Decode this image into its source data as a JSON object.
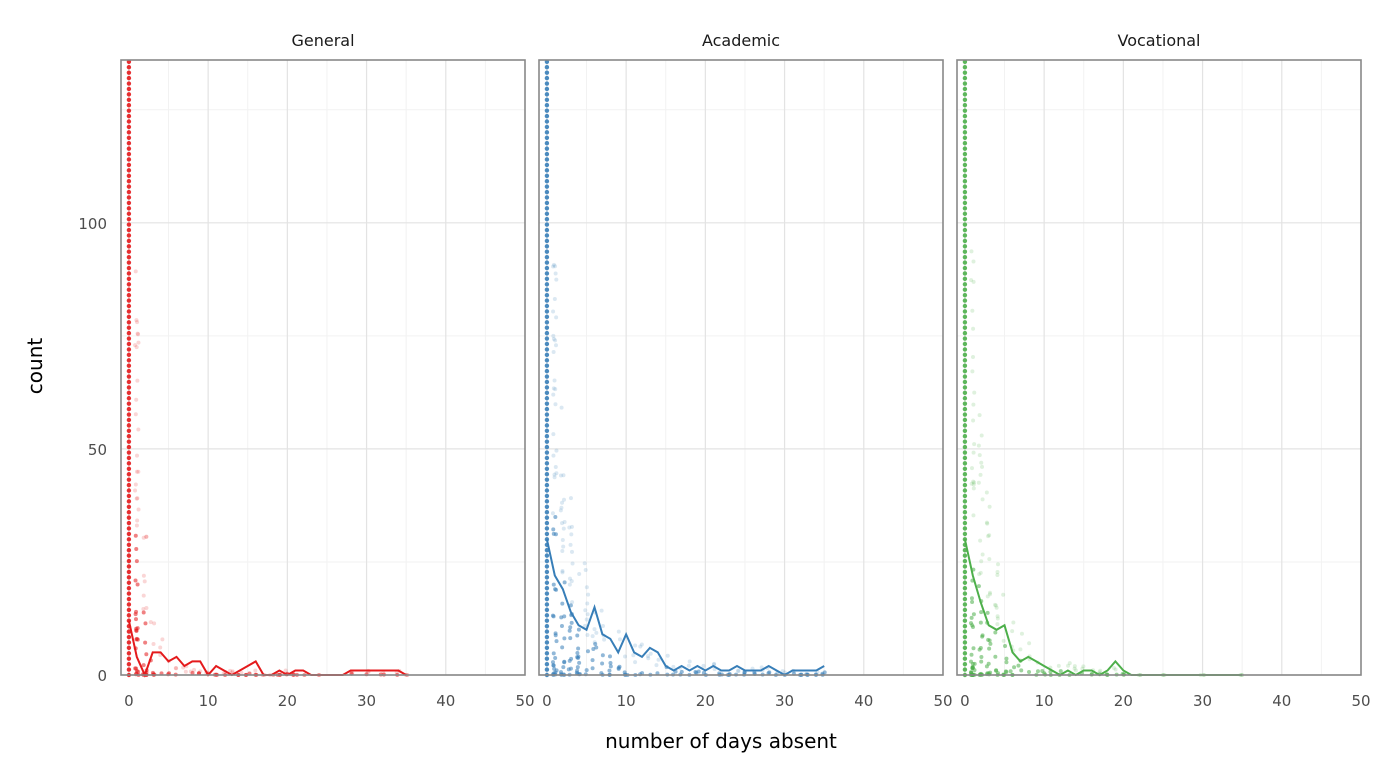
{
  "chart_data": {
    "type": "scatter",
    "xlabel": "number of days absent",
    "ylabel": "count",
    "xlim": [
      -1,
      50
    ],
    "ylim": [
      0,
      136
    ],
    "x_ticks": [
      0,
      10,
      20,
      30,
      40,
      50
    ],
    "x_tick_labels": [
      "0",
      "10",
      "20",
      "30",
      "40",
      "50"
    ],
    "y_ticks": [
      0,
      50,
      100
    ],
    "y_tick_labels": [
      "0",
      "50",
      "100"
    ],
    "grid": true,
    "legend": "none",
    "panels": [
      {
        "name": "General",
        "color": "#e41a1c",
        "line": {
          "x": [
            0,
            1,
            2,
            3,
            4,
            5,
            6,
            7,
            8,
            9,
            10,
            11,
            12,
            13,
            14,
            15,
            16,
            17,
            18,
            19,
            20,
            21,
            22,
            23,
            24,
            25,
            26,
            27,
            28,
            29,
            30,
            31,
            32,
            33,
            34,
            35
          ],
          "y": [
            12,
            4,
            0,
            5,
            5,
            3,
            4,
            2,
            3,
            3,
            0,
            2,
            1,
            0,
            1,
            2,
            3,
            0,
            0,
            1,
            0,
            1,
            1,
            0,
            0,
            0,
            0,
            0,
            1,
            1,
            1,
            1,
            1,
            1,
            1,
            0
          ]
        },
        "point_spread": [
          [
            0,
            136
          ],
          [
            1,
            90
          ],
          [
            2,
            40
          ],
          [
            3,
            15
          ],
          [
            4,
            8
          ],
          [
            5,
            4
          ],
          [
            6,
            3
          ],
          [
            7,
            2
          ],
          [
            8,
            2
          ],
          [
            9,
            2
          ],
          [
            10,
            1
          ],
          [
            11,
            1
          ],
          [
            12,
            1
          ],
          [
            13,
            1
          ],
          [
            14,
            1
          ],
          [
            15,
            1
          ],
          [
            16,
            1
          ],
          [
            17,
            0
          ],
          [
            18,
            0
          ],
          [
            19,
            1
          ],
          [
            20,
            1
          ],
          [
            21,
            1
          ],
          [
            22,
            0
          ],
          [
            24,
            0
          ],
          [
            28,
            1
          ],
          [
            30,
            1
          ],
          [
            32,
            1
          ],
          [
            34,
            1
          ],
          [
            35,
            0
          ]
        ]
      },
      {
        "name": "Academic",
        "color": "#377eb8",
        "line": {
          "x": [
            0,
            1,
            2,
            3,
            4,
            5,
            6,
            7,
            8,
            9,
            10,
            11,
            12,
            13,
            14,
            15,
            16,
            17,
            18,
            19,
            20,
            21,
            22,
            23,
            24,
            25,
            26,
            27,
            28,
            29,
            30,
            31,
            32,
            33,
            34,
            35
          ],
          "y": [
            30,
            22,
            19,
            14,
            11,
            10,
            15,
            9,
            8,
            5,
            9,
            5,
            4,
            6,
            5,
            2,
            1,
            2,
            1,
            2,
            1,
            2,
            1,
            1,
            2,
            1,
            1,
            1,
            2,
            1,
            0,
            1,
            1,
            1,
            1,
            2
          ]
        },
        "point_spread": [
          [
            0,
            136
          ],
          [
            1,
            100
          ],
          [
            2,
            60
          ],
          [
            3,
            45
          ],
          [
            4,
            30
          ],
          [
            5,
            25
          ],
          [
            6,
            20
          ],
          [
            7,
            15
          ],
          [
            8,
            12
          ],
          [
            9,
            10
          ],
          [
            10,
            10
          ],
          [
            11,
            8
          ],
          [
            12,
            7
          ],
          [
            13,
            7
          ],
          [
            14,
            6
          ],
          [
            15,
            5
          ],
          [
            16,
            4
          ],
          [
            17,
            4
          ],
          [
            18,
            3
          ],
          [
            19,
            3
          ],
          [
            20,
            3
          ],
          [
            21,
            3
          ],
          [
            22,
            2
          ],
          [
            23,
            2
          ],
          [
            24,
            2
          ],
          [
            25,
            2
          ],
          [
            26,
            2
          ],
          [
            27,
            2
          ],
          [
            28,
            2
          ],
          [
            29,
            1
          ],
          [
            30,
            1
          ],
          [
            31,
            1
          ],
          [
            32,
            1
          ],
          [
            33,
            1
          ],
          [
            34,
            1
          ],
          [
            35,
            2
          ]
        ]
      },
      {
        "name": "Vocational",
        "color": "#4daf4a",
        "line": {
          "x": [
            0,
            1,
            2,
            3,
            4,
            5,
            6,
            7,
            8,
            9,
            10,
            11,
            12,
            13,
            14,
            15,
            16,
            17,
            18,
            19,
            20,
            21,
            22,
            23,
            24,
            25,
            26,
            27,
            28,
            29,
            30,
            31,
            32,
            33,
            34,
            35
          ],
          "y": [
            30,
            22,
            16,
            11,
            10,
            11,
            5,
            3,
            4,
            3,
            2,
            1,
            0,
            1,
            0,
            1,
            1,
            0,
            1,
            3,
            1,
            0,
            0,
            0,
            0,
            0,
            0,
            0,
            0,
            0,
            0,
            0,
            0,
            0,
            0,
            0
          ]
        },
        "point_spread": [
          [
            0,
            136
          ],
          [
            1,
            100
          ],
          [
            2,
            60
          ],
          [
            3,
            45
          ],
          [
            4,
            30
          ],
          [
            5,
            20
          ],
          [
            6,
            15
          ],
          [
            7,
            10
          ],
          [
            8,
            8
          ],
          [
            9,
            6
          ],
          [
            10,
            5
          ],
          [
            11,
            4
          ],
          [
            12,
            3
          ],
          [
            13,
            3
          ],
          [
            14,
            2
          ],
          [
            15,
            2
          ],
          [
            16,
            2
          ],
          [
            17,
            1
          ],
          [
            18,
            1
          ],
          [
            19,
            2
          ],
          [
            20,
            1
          ],
          [
            22,
            0
          ],
          [
            25,
            0
          ],
          [
            30,
            0
          ],
          [
            35,
            0
          ]
        ]
      }
    ]
  }
}
